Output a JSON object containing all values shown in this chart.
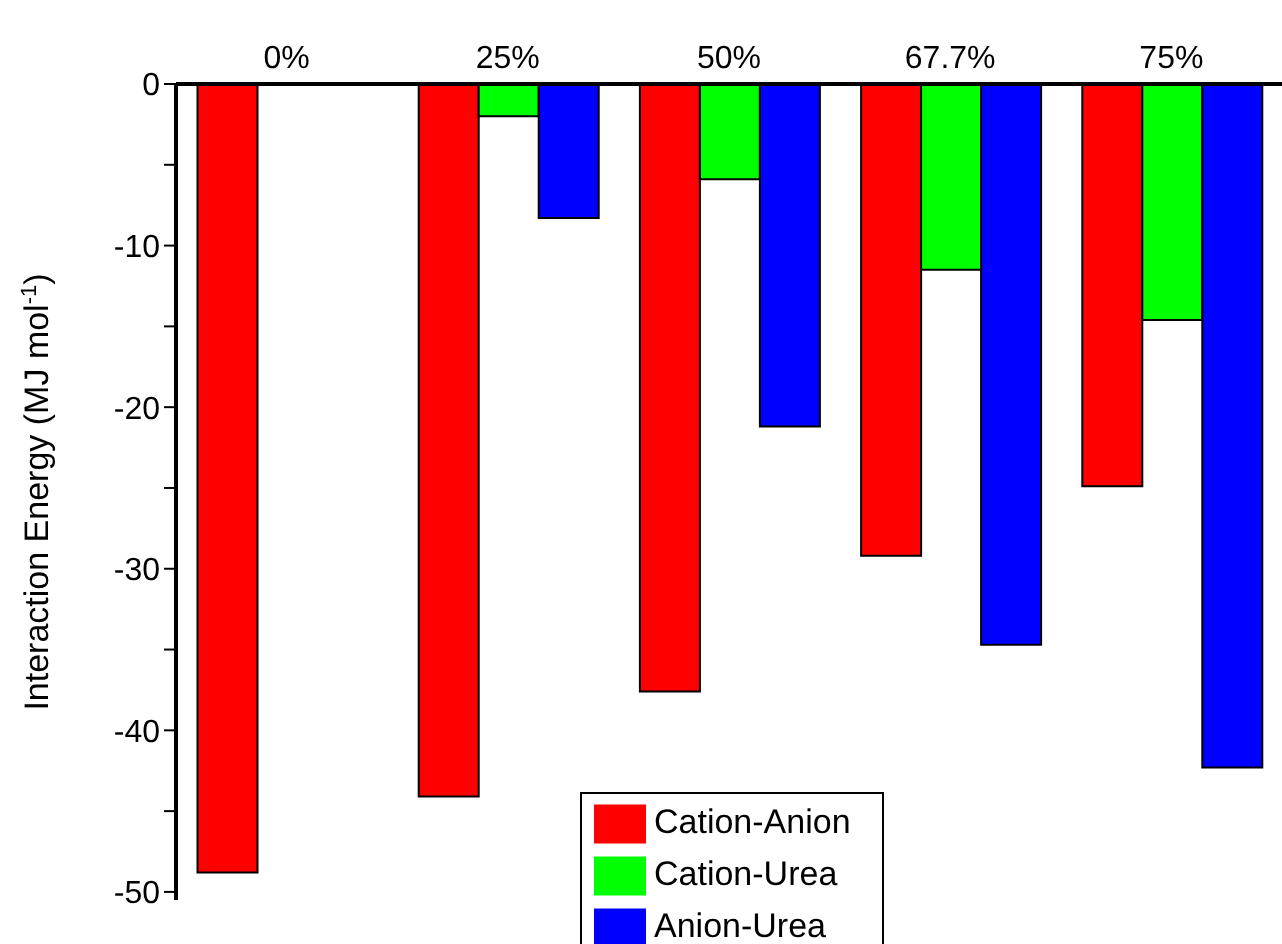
{
  "chart_data": {
    "type": "bar",
    "categories": [
      "0%",
      "25%",
      "50%",
      "67.7%",
      "75%"
    ],
    "ylabel": "Interaction Energy (MJ mol$^{-1}$)",
    "ylim": [
      -50.5,
      0
    ],
    "yticks": [
      0,
      {
        "value": -5,
        "label": null
      },
      -10,
      {
        "value": -15,
        "label": null
      },
      -20,
      {
        "value": -25,
        "label": null
      },
      -30,
      {
        "value": -35,
        "label": null
      },
      -40,
      {
        "value": -45,
        "label": null
      },
      -50
    ],
    "series": [
      {
        "name": "Cation-Anion",
        "color": "#ff0000",
        "values": [
          -48.8,
          -44.1,
          -37.6,
          -29.2,
          -24.9
        ]
      },
      {
        "name": "Cation-Urea",
        "color": "#00ff00",
        "values": [
          null,
          -2.0,
          -5.9,
          -11.5,
          -14.6
        ]
      },
      {
        "name": "Anion-Urea",
        "color": "#0000ff",
        "values": [
          null,
          -8.3,
          -21.2,
          -34.7,
          -42.3
        ]
      }
    ],
    "legend": "bottom",
    "grid": false
  }
}
